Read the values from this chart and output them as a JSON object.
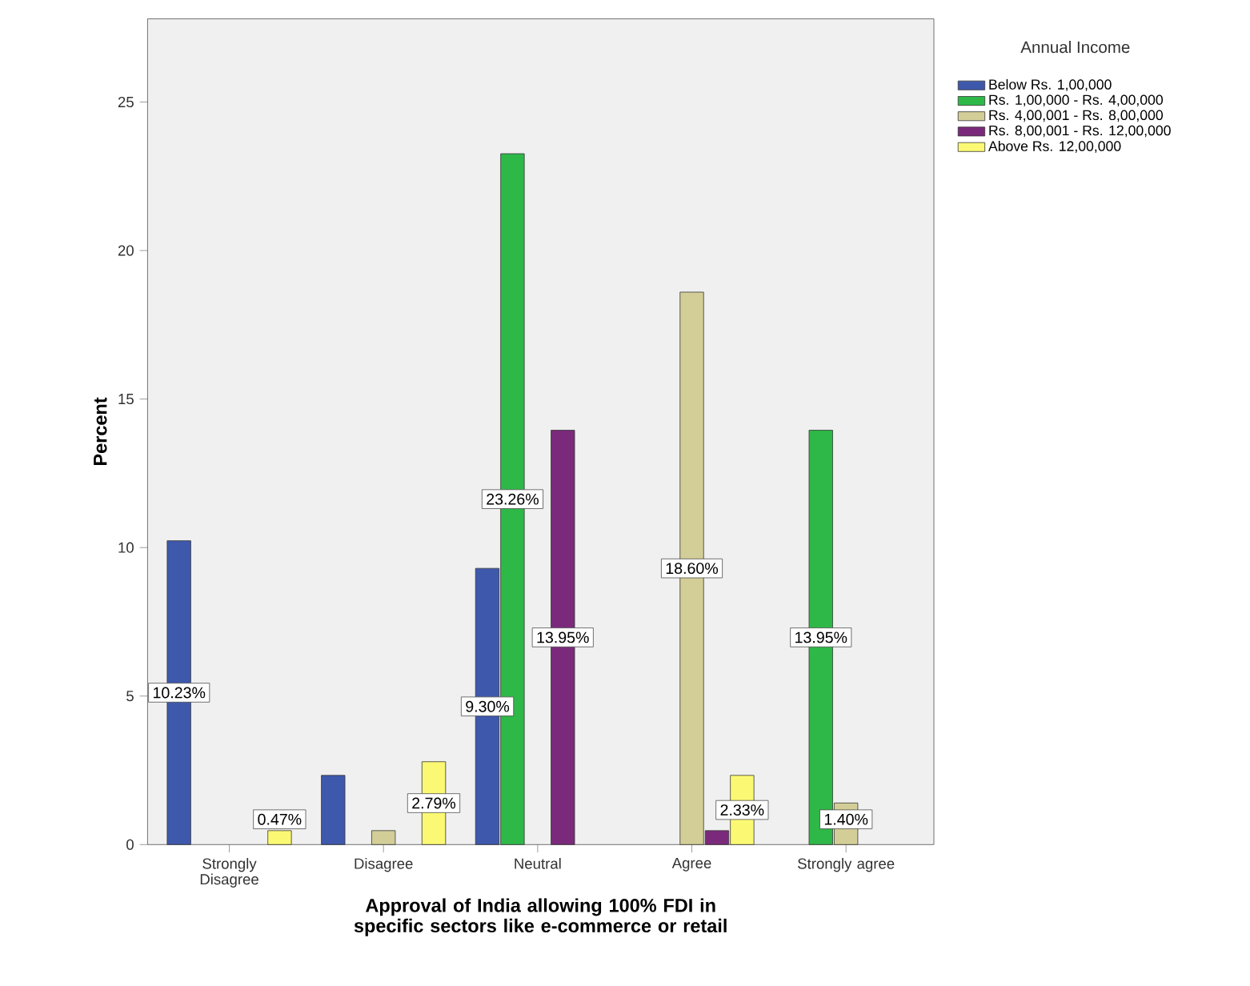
{
  "chart_data": {
    "type": "bar",
    "xlabel": "Approval of India allowing 100% FDI in specific sectors like e-commerce or retail",
    "ylabel": "Percent",
    "legend_title": "Annual Income",
    "legend": "right",
    "categories": [
      "Strongly Disagree",
      "Disagree",
      "Neutral",
      "Agree",
      "Strongly agree"
    ],
    "ylim": [
      0,
      27.8
    ],
    "yticks": [
      0,
      5,
      10,
      15,
      20,
      25
    ],
    "series": [
      {
        "name": "Below Rs. 1,00,000",
        "color": "#3e58ac",
        "values": [
          10.23,
          2.33,
          9.3,
          null,
          null
        ],
        "value_labels": [
          "10.23%",
          null,
          "9.30%",
          null,
          null
        ]
      },
      {
        "name": "Rs. 1,00,000 - Rs. 4,00,000",
        "color": "#2eb848",
        "values": [
          null,
          null,
          23.26,
          null,
          13.95
        ],
        "value_labels": [
          null,
          null,
          "23.26%",
          null,
          "13.95%"
        ]
      },
      {
        "name": "Rs. 4,00,001 - Rs. 8,00,000",
        "color": "#d3ce97",
        "values": [
          null,
          0.47,
          null,
          18.6,
          1.4
        ],
        "value_labels": [
          null,
          null,
          null,
          "18.60%",
          "1.40%"
        ]
      },
      {
        "name": "Rs. 8,00,001 - Rs. 12,00,000",
        "color": "#7b2a7b",
        "values": [
          null,
          null,
          13.95,
          0.47,
          null
        ],
        "value_labels": [
          null,
          null,
          "13.95%",
          null,
          null
        ]
      },
      {
        "name": "Above Rs. 12,00,000",
        "color": "#fbf873",
        "values": [
          0.47,
          2.79,
          null,
          2.33,
          null
        ],
        "value_labels": [
          "0.47%",
          "2.79%",
          null,
          "2.33%",
          null
        ]
      }
    ]
  }
}
